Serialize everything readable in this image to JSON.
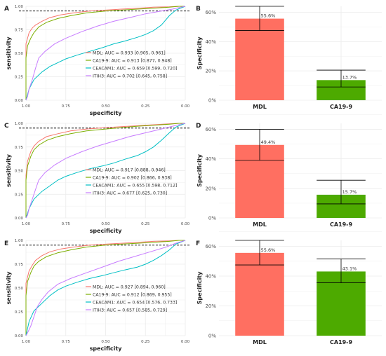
{
  "colors": {
    "mdl": "#F8766D",
    "ca199": "#7CAE00",
    "ceacam1": "#00BFC4",
    "itih3": "#C77CFF",
    "bar_mdl": "#FF6F61",
    "bar_ca199": "#4DAA00",
    "grid": "#EBEBEB",
    "text": "#222222",
    "tick": "#4D4D4D"
  },
  "chart_data": [
    {
      "type": "line",
      "panel": "A",
      "xlabel": "specificity",
      "ylabel": "sensitivity",
      "x_ticks": [
        "1.00",
        "0.75",
        "0.50",
        "0.25",
        "0.00"
      ],
      "y_ticks": [
        "0.00",
        "0.25",
        "0.50",
        "0.75",
        "1.00"
      ],
      "xlim": [
        1,
        0
      ],
      "ylim": [
        0,
        1
      ],
      "reference_line": 0.95,
      "legend_position": "bottom-right",
      "series": [
        {
          "name": "MDL: AUC = 0.933 [0.905, 0.961]",
          "color_key": "mdl",
          "specificity": [
            1.0,
            1.0,
            0.98,
            0.96,
            0.94,
            0.9,
            0.85,
            0.78,
            0.7,
            0.6,
            0.5,
            0.4,
            0.3,
            0.2,
            0.1,
            0.04,
            0.0
          ],
          "sensitivity": [
            0.0,
            0.6,
            0.72,
            0.77,
            0.8,
            0.84,
            0.88,
            0.91,
            0.93,
            0.95,
            0.96,
            0.97,
            0.98,
            0.99,
            0.995,
            1.0,
            1.0
          ]
        },
        {
          "name": "CA19-9: AUC = 0.913 [0.877, 0.948]",
          "color_key": "ca199",
          "specificity": [
            1.0,
            1.0,
            0.99,
            0.97,
            0.95,
            0.92,
            0.87,
            0.8,
            0.72,
            0.62,
            0.5,
            0.4,
            0.3,
            0.2,
            0.1,
            0.04,
            0.0
          ],
          "sensitivity": [
            0.0,
            0.45,
            0.58,
            0.66,
            0.72,
            0.78,
            0.83,
            0.87,
            0.9,
            0.93,
            0.95,
            0.96,
            0.97,
            0.98,
            0.99,
            1.0,
            1.0
          ]
        },
        {
          "name": "CEACAM1: AUC = 0.659 [0.599, 0.720]",
          "color_key": "ceacam1",
          "specificity": [
            1.0,
            0.98,
            0.95,
            0.9,
            0.85,
            0.8,
            0.75,
            0.68,
            0.6,
            0.52,
            0.45,
            0.38,
            0.3,
            0.25,
            0.2,
            0.15,
            0.1,
            0.06,
            0.03,
            0.0
          ],
          "sensitivity": [
            0.0,
            0.12,
            0.22,
            0.3,
            0.36,
            0.4,
            0.44,
            0.48,
            0.52,
            0.56,
            0.6,
            0.63,
            0.67,
            0.7,
            0.74,
            0.8,
            0.9,
            0.96,
            0.98,
            1.0
          ]
        },
        {
          "name": "ITIH3: AUC = 0.702 [0.645, 0.758]",
          "color_key": "itih3",
          "specificity": [
            1.0,
            0.99,
            0.98,
            0.96,
            0.94,
            0.92,
            0.88,
            0.82,
            0.75,
            0.65,
            0.55,
            0.45,
            0.35,
            0.25,
            0.15,
            0.08,
            0.03,
            0.0
          ],
          "sensitivity": [
            0.0,
            0.04,
            0.12,
            0.22,
            0.34,
            0.45,
            0.52,
            0.6,
            0.66,
            0.73,
            0.79,
            0.84,
            0.88,
            0.92,
            0.95,
            0.97,
            0.99,
            1.0
          ]
        }
      ]
    },
    {
      "type": "bar",
      "panel": "B",
      "xlabel": "",
      "ylabel": "Specificity",
      "y_ticks": [
        "0%",
        "20%",
        "40%",
        "60%"
      ],
      "ylim": [
        0,
        64
      ],
      "categories": [
        "MDL",
        "CA19-9"
      ],
      "values": [
        55.6,
        13.7
      ],
      "value_labels": [
        "55.6%",
        "13.7%"
      ],
      "error_low": [
        47.5,
        9.0
      ],
      "error_high": [
        64.0,
        20.5
      ],
      "color_keys": [
        "bar_mdl",
        "bar_ca199"
      ]
    },
    {
      "type": "line",
      "panel": "C",
      "xlabel": "specificity",
      "ylabel": "sensitivity",
      "x_ticks": [
        "1.00",
        "0.75",
        "0.50",
        "0.25",
        "0.00"
      ],
      "y_ticks": [
        "0.00",
        "0.25",
        "0.50",
        "0.75",
        "1.00"
      ],
      "xlim": [
        1,
        0
      ],
      "ylim": [
        0,
        1
      ],
      "reference_line": 0.95,
      "legend_position": "bottom-right",
      "series": [
        {
          "name": "MDL: AUC = 0.917 [0.888, 0.946]",
          "color_key": "mdl",
          "specificity": [
            1.0,
            1.0,
            0.99,
            0.97,
            0.95,
            0.92,
            0.87,
            0.8,
            0.72,
            0.62,
            0.5,
            0.4,
            0.3,
            0.2,
            0.1,
            0.04,
            0.0
          ],
          "sensitivity": [
            0.0,
            0.45,
            0.6,
            0.7,
            0.76,
            0.81,
            0.86,
            0.89,
            0.92,
            0.94,
            0.955,
            0.965,
            0.975,
            0.985,
            0.995,
            1.0,
            1.0
          ]
        },
        {
          "name": "CA19-9: AUC = 0.902 [0.866, 0.938]",
          "color_key": "ca199",
          "specificity": [
            1.0,
            1.0,
            0.99,
            0.97,
            0.95,
            0.92,
            0.87,
            0.8,
            0.72,
            0.62,
            0.5,
            0.4,
            0.3,
            0.2,
            0.1,
            0.04,
            0.0
          ],
          "sensitivity": [
            0.0,
            0.4,
            0.55,
            0.65,
            0.72,
            0.77,
            0.82,
            0.86,
            0.89,
            0.92,
            0.94,
            0.955,
            0.97,
            0.98,
            0.99,
            1.0,
            1.0
          ]
        },
        {
          "name": "CEACAM1: AUC = 0.655 [0.598, 0.712]",
          "color_key": "ceacam1",
          "specificity": [
            1.0,
            0.98,
            0.95,
            0.9,
            0.85,
            0.8,
            0.75,
            0.68,
            0.6,
            0.52,
            0.45,
            0.38,
            0.3,
            0.25,
            0.2,
            0.15,
            0.1,
            0.06,
            0.03,
            0.0
          ],
          "sensitivity": [
            0.0,
            0.1,
            0.2,
            0.28,
            0.34,
            0.4,
            0.44,
            0.48,
            0.52,
            0.55,
            0.58,
            0.62,
            0.66,
            0.7,
            0.75,
            0.82,
            0.9,
            0.96,
            0.98,
            1.0
          ]
        },
        {
          "name": "ITIH3: AUC = 0.677 [0.625, 0.730]",
          "color_key": "itih3",
          "specificity": [
            1.0,
            0.99,
            0.98,
            0.96,
            0.94,
            0.92,
            0.88,
            0.82,
            0.75,
            0.65,
            0.55,
            0.45,
            0.35,
            0.25,
            0.15,
            0.08,
            0.03,
            0.0
          ],
          "sensitivity": [
            0.0,
            0.03,
            0.1,
            0.2,
            0.3,
            0.4,
            0.48,
            0.56,
            0.63,
            0.7,
            0.76,
            0.81,
            0.86,
            0.9,
            0.94,
            0.97,
            0.99,
            1.0
          ]
        }
      ]
    },
    {
      "type": "bar",
      "panel": "D",
      "xlabel": "",
      "ylabel": "Specificity",
      "y_ticks": [
        "0%",
        "20%",
        "40%",
        "60%"
      ],
      "ylim": [
        0,
        64
      ],
      "categories": [
        "MDL",
        "CA19-9"
      ],
      "values": [
        49.4,
        15.7
      ],
      "value_labels": [
        "49.4%",
        "15.7%"
      ],
      "error_low": [
        39.0,
        9.5
      ],
      "error_high": [
        60.0,
        25.5
      ],
      "color_keys": [
        "bar_mdl",
        "bar_ca199"
      ]
    },
    {
      "type": "line",
      "panel": "E",
      "xlabel": "specificity",
      "ylabel": "sensitivity",
      "x_ticks": [
        "1.00",
        "0.75",
        "0.50",
        "0.25",
        "0.00"
      ],
      "y_ticks": [
        "0.00",
        "0.25",
        "0.50",
        "0.75",
        "1.00"
      ],
      "xlim": [
        1,
        0
      ],
      "ylim": [
        0,
        1
      ],
      "reference_line": 0.95,
      "legend_position": "bottom-right",
      "series": [
        {
          "name": "MDL: AUC = 0.927 [0.894, 0.960]",
          "color_key": "mdl",
          "specificity": [
            1.0,
            1.0,
            0.98,
            0.96,
            0.94,
            0.9,
            0.85,
            0.78,
            0.7,
            0.6,
            0.5,
            0.4,
            0.3,
            0.2,
            0.1,
            0.04,
            0.0
          ],
          "sensitivity": [
            0.0,
            0.55,
            0.68,
            0.74,
            0.79,
            0.84,
            0.88,
            0.91,
            0.93,
            0.95,
            0.96,
            0.97,
            0.98,
            0.99,
            0.995,
            1.0,
            1.0
          ]
        },
        {
          "name": "CA19-9: AUC = 0.912 [0.869, 0.955]",
          "color_key": "ca199",
          "specificity": [
            1.0,
            1.0,
            0.99,
            0.97,
            0.95,
            0.92,
            0.87,
            0.8,
            0.72,
            0.62,
            0.5,
            0.4,
            0.3,
            0.2,
            0.1,
            0.04,
            0.0
          ],
          "sensitivity": [
            0.0,
            0.42,
            0.57,
            0.66,
            0.73,
            0.78,
            0.83,
            0.87,
            0.9,
            0.93,
            0.95,
            0.96,
            0.97,
            0.98,
            0.99,
            1.0,
            1.0
          ]
        },
        {
          "name": "CEACAM1: AUC = 0.654 [0.576, 0.733]",
          "color_key": "ceacam1",
          "specificity": [
            1.0,
            0.98,
            0.95,
            0.9,
            0.85,
            0.8,
            0.75,
            0.68,
            0.6,
            0.52,
            0.45,
            0.38,
            0.3,
            0.25,
            0.2,
            0.15,
            0.1,
            0.06,
            0.03,
            0.0
          ],
          "sensitivity": [
            0.0,
            0.15,
            0.26,
            0.34,
            0.42,
            0.48,
            0.52,
            0.56,
            0.6,
            0.63,
            0.66,
            0.69,
            0.72,
            0.75,
            0.79,
            0.84,
            0.9,
            0.96,
            0.98,
            1.0
          ]
        },
        {
          "name": "ITIH3: AUC = 0.657 [0.585, 0.729]",
          "color_key": "itih3",
          "specificity": [
            1.0,
            0.99,
            0.97,
            0.95,
            0.93,
            0.9,
            0.86,
            0.8,
            0.72,
            0.62,
            0.52,
            0.42,
            0.32,
            0.22,
            0.12,
            0.06,
            0.02,
            0.0
          ],
          "sensitivity": [
            0.0,
            0.03,
            0.1,
            0.2,
            0.3,
            0.38,
            0.46,
            0.54,
            0.6,
            0.66,
            0.72,
            0.78,
            0.83,
            0.88,
            0.93,
            0.97,
            0.99,
            1.0
          ]
        }
      ]
    },
    {
      "type": "bar",
      "panel": "F",
      "xlabel": "",
      "ylabel": "Specificity",
      "y_ticks": [
        "0%",
        "20%",
        "40%",
        "60%"
      ],
      "ylim": [
        0,
        64
      ],
      "categories": [
        "MDL",
        "CA19-9"
      ],
      "values": [
        55.6,
        43.1
      ],
      "value_labels": [
        "55.6%",
        "43.1%"
      ],
      "error_low": [
        47.5,
        35.5
      ],
      "error_high": [
        64.0,
        51.5
      ],
      "color_keys": [
        "bar_mdl",
        "bar_ca199"
      ]
    }
  ]
}
